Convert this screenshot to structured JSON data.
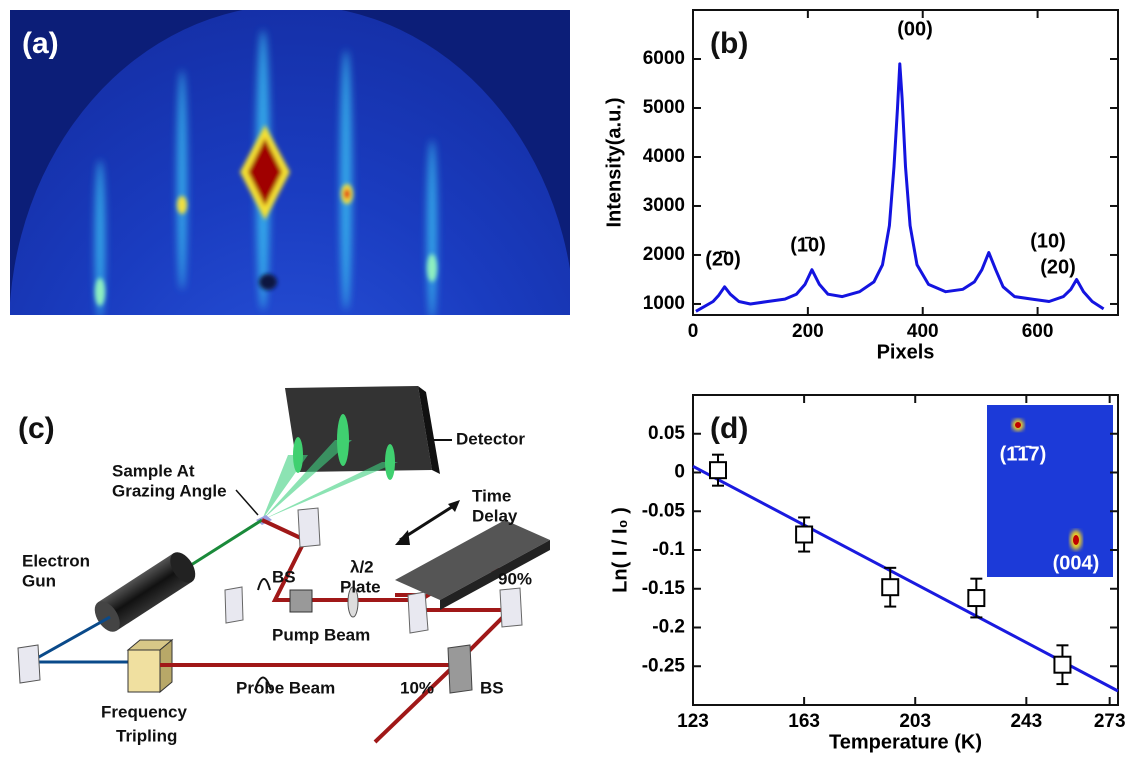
{
  "panels": [
    "(a)",
    "(b)",
    "(c)",
    "(d)"
  ],
  "diagram": {
    "labels": [
      "Sample At",
      "Grazing Angle",
      "Detector",
      "Time",
      "Delay",
      "Electron",
      "Gun",
      "BS",
      "λ/2",
      "Plate",
      "90%",
      "Pump Beam",
      "Probe Beam",
      "10%",
      "BS",
      "Frequency",
      "Tripling"
    ]
  },
  "chart_data": [
    {
      "type": "line",
      "x_label": "Pixels",
      "y_label": "Intensity(a.u.)",
      "x": [
        5,
        20,
        35,
        45,
        55,
        65,
        80,
        100,
        130,
        160,
        180,
        195,
        207,
        220,
        235,
        260,
        290,
        315,
        330,
        342,
        350,
        356,
        360,
        364,
        370,
        378,
        390,
        410,
        440,
        470,
        490,
        503,
        515,
        527,
        540,
        560,
        590,
        620,
        645,
        658,
        668,
        680,
        695,
        715
      ],
      "series": [
        {
          "color": "#1414e0",
          "values": [
            850,
            950,
            1050,
            1180,
            1350,
            1200,
            1050,
            1000,
            1050,
            1100,
            1200,
            1400,
            1700,
            1400,
            1200,
            1150,
            1250,
            1450,
            1800,
            2600,
            3800,
            5000,
            5900,
            5200,
            3800,
            2600,
            1800,
            1400,
            1250,
            1300,
            1450,
            1700,
            2050,
            1700,
            1350,
            1150,
            1100,
            1050,
            1150,
            1300,
            1500,
            1250,
            1050,
            900
          ]
        }
      ],
      "peak_labels": [
        "(2̄0)",
        "(1̄0)",
        "(00)",
        "(10)",
        "(20)"
      ],
      "xlim": [
        0,
        740
      ],
      "xticks": [
        0,
        200,
        400,
        600
      ],
      "ylim": [
        775,
        7000
      ],
      "yticks": [
        1000,
        2000,
        3000,
        4000,
        5000,
        6000
      ]
    },
    {
      "type": "scatter",
      "x_label": "Temperature (K)",
      "y_label": "Ln( I / I₀ )",
      "x": [
        132,
        163,
        194,
        225,
        256
      ],
      "series": [
        {
          "color": "#000000",
          "values": [
            0.003,
            -0.08,
            -0.148,
            -0.162,
            -0.248
          ],
          "errors": [
            0.02,
            0.022,
            0.025,
            0.025,
            0.025
          ]
        }
      ],
      "fit": {
        "color": "#1a1adf",
        "x": [
          123,
          276
        ],
        "values": [
          0.008,
          -0.282
        ]
      },
      "inset_labels": [
        "(1̄1̄7)",
        "(004)"
      ],
      "xlim": [
        123,
        276
      ],
      "xticks": [
        123,
        163,
        203,
        243,
        273
      ],
      "ylim": [
        -0.3,
        0.1
      ],
      "yticks": [
        0.05,
        0,
        -0.05,
        -0.1,
        -0.15,
        -0.2,
        -0.25
      ]
    }
  ]
}
